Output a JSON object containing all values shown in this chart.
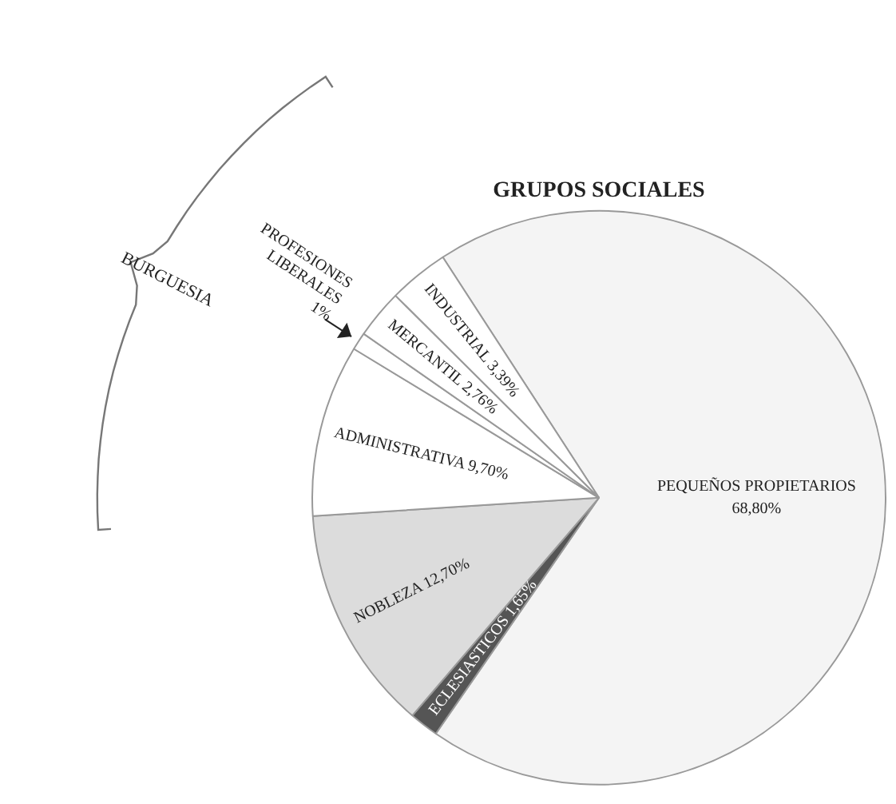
{
  "chart_data": {
    "type": "pie",
    "title": "GRUPOS SOCIALES",
    "categories": [
      "PEQUEÑOS PROPIETARIOS",
      "ECLESIASTICOS",
      "NOBLEZA",
      "ADMINISTRATIVA",
      "PROFESIONES LIBERALES",
      "MERCANTIL",
      "INDUSTRIAL"
    ],
    "values": [
      68.8,
      1.65,
      12.7,
      9.7,
      1,
      2.76,
      3.39
    ],
    "value_labels": [
      "68,80%",
      "1,65%",
      "12,70%",
      "9,70%",
      "1%",
      "2,76%",
      "3,39%"
    ],
    "colors": [
      "#f4f4f4",
      "#555555",
      "#dcdcdc",
      "#ffffff",
      "#ffffff",
      "#ffffff",
      "#ffffff"
    ],
    "annotations": [
      "BURGUESIA"
    ],
    "legend": false
  }
}
